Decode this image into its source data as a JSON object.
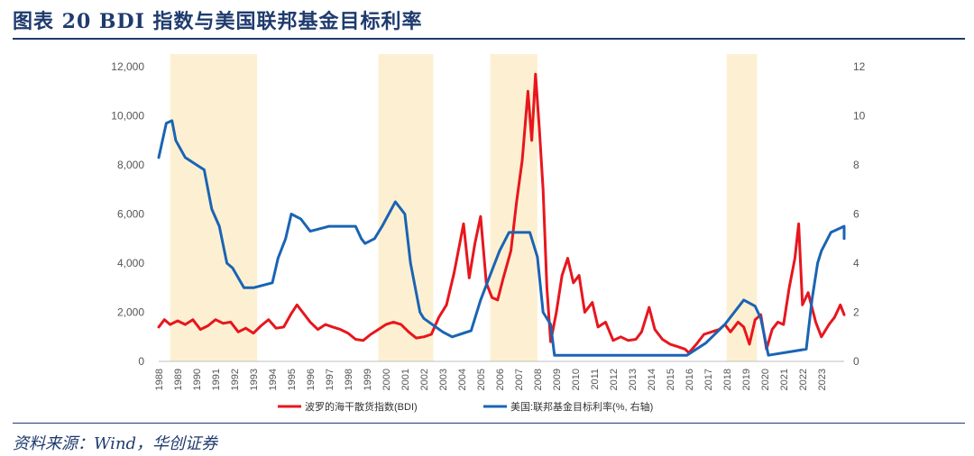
{
  "figure": {
    "title": "图表 20 BDI 指数与美国联邦基金目标利率",
    "source": "资料来源：Wind，华创证券"
  },
  "colors": {
    "bdi": "#e8161d",
    "fed": "#1a64b4",
    "shade": "#fdf0d2",
    "axis_text": "#555555",
    "title": "#1f3b6e"
  },
  "chart_data": {
    "type": "line",
    "x_ticks": [
      "1988",
      "1989",
      "1990",
      "1991",
      "1992",
      "1993",
      "1994",
      "1995",
      "1996",
      "1997",
      "1998",
      "1999",
      "2000",
      "2001",
      "2002",
      "2003",
      "2004",
      "2005",
      "2006",
      "2007",
      "2008",
      "2009",
      "2010",
      "2011",
      "2012",
      "2013",
      "2014",
      "2015",
      "2016",
      "2017",
      "2018",
      "2019",
      "2020",
      "2021",
      "2022",
      "2023"
    ],
    "xlim": [
      1988,
      2024.2
    ],
    "y_left": {
      "lim": [
        0,
        12000
      ],
      "ticks": [
        "0",
        "2,000",
        "4,000",
        "6,000",
        "8,000",
        "10,000",
        "12,000"
      ]
    },
    "y_right": {
      "lim": [
        0,
        12
      ],
      "ticks": [
        "0",
        "2",
        "4",
        "6",
        "8",
        "10",
        "12"
      ]
    },
    "recession_shading": [
      [
        1988.6,
        1993.2
      ],
      [
        1999.6,
        2002.5
      ],
      [
        2005.5,
        2008.0
      ],
      [
        2018.0,
        2019.6
      ]
    ],
    "series": [
      {
        "name": "波罗的海干散货指数(BDI)",
        "axis": "left",
        "points": [
          [
            1988.0,
            1400
          ],
          [
            1988.3,
            1700
          ],
          [
            1988.6,
            1500
          ],
          [
            1989.0,
            1650
          ],
          [
            1989.4,
            1500
          ],
          [
            1989.8,
            1700
          ],
          [
            1990.2,
            1300
          ],
          [
            1990.6,
            1450
          ],
          [
            1991.0,
            1700
          ],
          [
            1991.4,
            1550
          ],
          [
            1991.8,
            1600
          ],
          [
            1992.2,
            1200
          ],
          [
            1992.6,
            1350
          ],
          [
            1993.0,
            1150
          ],
          [
            1993.4,
            1450
          ],
          [
            1993.8,
            1700
          ],
          [
            1994.2,
            1350
          ],
          [
            1994.6,
            1400
          ],
          [
            1995.0,
            1950
          ],
          [
            1995.3,
            2300
          ],
          [
            1995.6,
            2000
          ],
          [
            1996.0,
            1600
          ],
          [
            1996.4,
            1300
          ],
          [
            1996.8,
            1500
          ],
          [
            1997.2,
            1400
          ],
          [
            1997.6,
            1300
          ],
          [
            1998.0,
            1150
          ],
          [
            1998.4,
            900
          ],
          [
            1998.8,
            850
          ],
          [
            1999.2,
            1100
          ],
          [
            1999.6,
            1300
          ],
          [
            2000.0,
            1500
          ],
          [
            2000.4,
            1600
          ],
          [
            2000.8,
            1500
          ],
          [
            2001.2,
            1200
          ],
          [
            2001.6,
            950
          ],
          [
            2002.0,
            1000
          ],
          [
            2002.4,
            1100
          ],
          [
            2002.8,
            1800
          ],
          [
            2003.2,
            2300
          ],
          [
            2003.6,
            3600
          ],
          [
            2003.9,
            4800
          ],
          [
            2004.1,
            5600
          ],
          [
            2004.4,
            3400
          ],
          [
            2004.7,
            4800
          ],
          [
            2005.0,
            5900
          ],
          [
            2005.3,
            3200
          ],
          [
            2005.6,
            2600
          ],
          [
            2005.9,
            2500
          ],
          [
            2006.2,
            3400
          ],
          [
            2006.6,
            4500
          ],
          [
            2006.9,
            6500
          ],
          [
            2007.2,
            8200
          ],
          [
            2007.5,
            11000
          ],
          [
            2007.7,
            9000
          ],
          [
            2007.9,
            11700
          ],
          [
            2008.1,
            9500
          ],
          [
            2008.3,
            7000
          ],
          [
            2008.5,
            3000
          ],
          [
            2008.7,
            800
          ],
          [
            2009.0,
            2000
          ],
          [
            2009.3,
            3500
          ],
          [
            2009.6,
            4200
          ],
          [
            2009.9,
            3200
          ],
          [
            2010.2,
            3500
          ],
          [
            2010.5,
            2000
          ],
          [
            2010.9,
            2400
          ],
          [
            2011.2,
            1400
          ],
          [
            2011.6,
            1600
          ],
          [
            2012.0,
            850
          ],
          [
            2012.4,
            1000
          ],
          [
            2012.8,
            850
          ],
          [
            2013.2,
            900
          ],
          [
            2013.5,
            1200
          ],
          [
            2013.9,
            2200
          ],
          [
            2014.2,
            1300
          ],
          [
            2014.6,
            900
          ],
          [
            2015.0,
            700
          ],
          [
            2015.4,
            600
          ],
          [
            2015.8,
            500
          ],
          [
            2016.0,
            350
          ],
          [
            2016.4,
            700
          ],
          [
            2016.8,
            1100
          ],
          [
            2017.2,
            1200
          ],
          [
            2017.6,
            1300
          ],
          [
            2017.9,
            1500
          ],
          [
            2018.2,
            1200
          ],
          [
            2018.6,
            1600
          ],
          [
            2018.9,
            1400
          ],
          [
            2019.2,
            700
          ],
          [
            2019.5,
            1700
          ],
          [
            2019.8,
            1900
          ],
          [
            2020.1,
            500
          ],
          [
            2020.4,
            1300
          ],
          [
            2020.7,
            1600
          ],
          [
            2021.0,
            1500
          ],
          [
            2021.3,
            3000
          ],
          [
            2021.6,
            4200
          ],
          [
            2021.8,
            5600
          ],
          [
            2022.0,
            2300
          ],
          [
            2022.3,
            2800
          ],
          [
            2022.7,
            1600
          ],
          [
            2023.0,
            1000
          ],
          [
            2023.4,
            1500
          ],
          [
            2023.7,
            1800
          ],
          [
            2024.0,
            2300
          ],
          [
            2024.2,
            1900
          ]
        ]
      },
      {
        "name": "美国:联邦基金目标利率(%, 右轴)",
        "axis": "right",
        "points": [
          [
            1988.0,
            8.3
          ],
          [
            1988.4,
            9.7
          ],
          [
            1988.7,
            9.8
          ],
          [
            1988.9,
            9.0
          ],
          [
            1989.4,
            8.3
          ],
          [
            1990.0,
            8.0
          ],
          [
            1990.4,
            7.8
          ],
          [
            1990.8,
            6.2
          ],
          [
            1991.2,
            5.5
          ],
          [
            1991.6,
            4.0
          ],
          [
            1991.9,
            3.8
          ],
          [
            1992.5,
            3.0
          ],
          [
            1993.0,
            3.0
          ],
          [
            1994.0,
            3.2
          ],
          [
            1994.3,
            4.2
          ],
          [
            1994.7,
            5.0
          ],
          [
            1995.0,
            6.0
          ],
          [
            1995.5,
            5.8
          ],
          [
            1996.0,
            5.3
          ],
          [
            1997.0,
            5.5
          ],
          [
            1998.4,
            5.5
          ],
          [
            1998.7,
            5.0
          ],
          [
            1998.9,
            4.8
          ],
          [
            1999.4,
            5.0
          ],
          [
            1999.8,
            5.5
          ],
          [
            2000.5,
            6.5
          ],
          [
            2001.0,
            6.0
          ],
          [
            2001.3,
            4.0
          ],
          [
            2001.8,
            2.0
          ],
          [
            2002.0,
            1.75
          ],
          [
            2003.0,
            1.2
          ],
          [
            2003.5,
            1.0
          ],
          [
            2004.5,
            1.25
          ],
          [
            2005.0,
            2.5
          ],
          [
            2005.5,
            3.5
          ],
          [
            2006.0,
            4.5
          ],
          [
            2006.5,
            5.25
          ],
          [
            2007.6,
            5.25
          ],
          [
            2008.0,
            4.25
          ],
          [
            2008.3,
            2.0
          ],
          [
            2008.7,
            1.5
          ],
          [
            2008.9,
            0.25
          ],
          [
            2015.9,
            0.25
          ],
          [
            2016.9,
            0.75
          ],
          [
            2017.9,
            1.5
          ],
          [
            2018.9,
            2.5
          ],
          [
            2019.5,
            2.25
          ],
          [
            2019.8,
            1.75
          ],
          [
            2020.2,
            0.25
          ],
          [
            2022.2,
            0.5
          ],
          [
            2022.5,
            2.5
          ],
          [
            2022.8,
            4.0
          ],
          [
            2023.0,
            4.5
          ],
          [
            2023.5,
            5.25
          ],
          [
            2024.2,
            5.5
          ],
          [
            2024.5,
            5.25
          ],
          [
            2025.5,
            5.0
          ]
        ]
      }
    ],
    "legend_position": "bottom"
  }
}
